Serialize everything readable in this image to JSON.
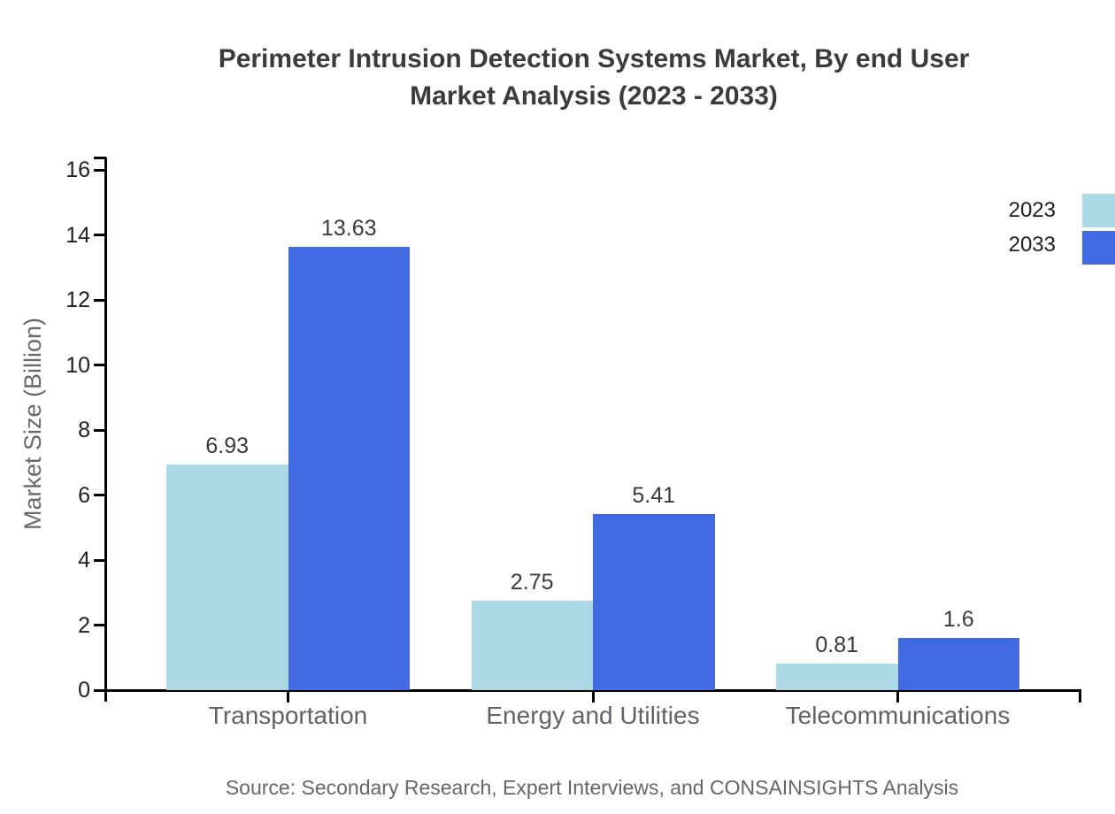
{
  "chart_data": {
    "type": "bar",
    "title": "Perimeter Intrusion Detection Systems Market, By end User Market Analysis (2023 - 2033)",
    "title_lines": [
      "Perimeter Intrusion Detection Systems Market, By end User",
      "Market Analysis (2023 - 2033)"
    ],
    "xlabel": "",
    "ylabel": "Market Size (Billion)",
    "categories": [
      "Transportation",
      "Energy and Utilities",
      "Telecommunications"
    ],
    "series": [
      {
        "name": "2023",
        "color": "#ADD8E6",
        "values": [
          6.93,
          2.75,
          0.81
        ],
        "value_labels": [
          "6.93",
          "2.75",
          "0.81"
        ]
      },
      {
        "name": "2033",
        "color": "#4169E1",
        "values": [
          13.63,
          5.41,
          1.6
        ],
        "value_labels": [
          "13.63",
          "5.41",
          "1.6"
        ]
      }
    ],
    "ylim": [
      0,
      16
    ],
    "yticks": [
      0,
      2,
      4,
      6,
      8,
      10,
      12,
      14,
      16
    ],
    "grid": false,
    "legend_position": "top-right",
    "source": "Source: Secondary Research, Expert Interviews, and CONSAINSIGHTS Analysis"
  },
  "style": {
    "background": "#ffffff",
    "title_color": "#3b3b3b",
    "axis_color": "#000000",
    "tick_label_color": "#1f1f1f",
    "category_label_color": "#5f6368",
    "value_label_color": "#3a3a3a",
    "muted_text_color": "#63676b",
    "series_2023_color": "#ADD8E6",
    "series_2033_color": "#4169E1"
  }
}
